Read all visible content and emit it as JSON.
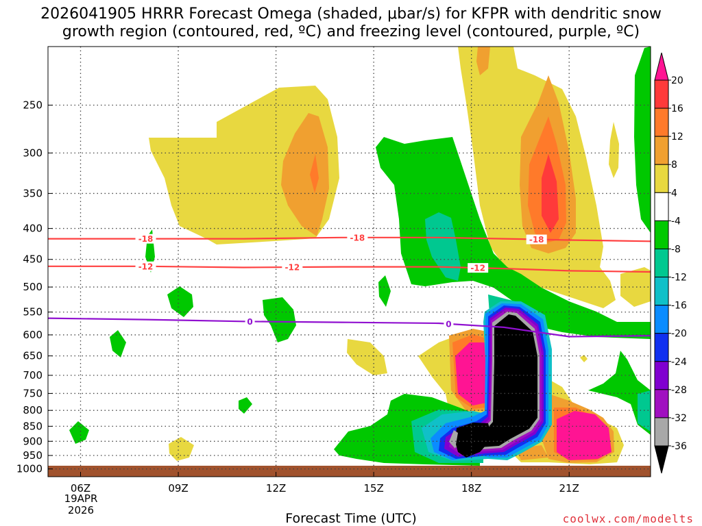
{
  "title_line1": "2026041905 HRRR Forecast Omega (shaded, μbar/s) for KFPR with dendritic snow",
  "title_line2": "growth region (contoured, red, ºC) and freezing level (contoured, purple, ºC)",
  "xlabel": "Forecast Time (UTC)",
  "credit": "coolwx.com/modelts",
  "date_line1": "19APR",
  "date_line2": "2026",
  "chart_data": {
    "type": "heatmap",
    "title": "2026041905 HRRR Forecast Omega (shaded, μbar/s) for KFPR",
    "xlabel": "Forecast Time (UTC)",
    "ylabel": "",
    "x_ticks": [
      "06Z",
      "09Z",
      "12Z",
      "15Z",
      "18Z",
      "21Z"
    ],
    "x_tick_hours": [
      6,
      9,
      12,
      15,
      18,
      21
    ],
    "xlim": [
      5,
      23.5
    ],
    "y_ticks": [
      250,
      300,
      350,
      400,
      450,
      500,
      550,
      600,
      650,
      700,
      750,
      800,
      850,
      900,
      950,
      1000
    ],
    "ylim": [
      1030,
      200
    ],
    "y_scale": "log-pressure",
    "colorbar_levels": [
      20,
      16,
      12,
      8,
      4,
      -4,
      -8,
      -12,
      -16,
      -20,
      -24,
      -28,
      -32,
      -36
    ],
    "colorbar_colors": [
      "#ff1493",
      "#ff3a3a",
      "#ff7a2a",
      "#f0a030",
      "#e8d840",
      "#ffffff",
      "#00c800",
      "#00c890",
      "#10c0c8",
      "#0a8cff",
      "#1030f0",
      "#8000d0",
      "#a010c0",
      "#a8a8a8",
      "#000000"
    ],
    "contours": [
      {
        "label": "-18",
        "color": "#ff4040",
        "p": [
          416,
          416,
          416,
          414,
          414,
          416,
          418,
          420
        ]
      },
      {
        "label": "-12",
        "color": "#ff4040",
        "p": [
          462,
          462,
          464,
          463,
          463,
          466,
          470,
          472
        ]
      },
      {
        "label": "0",
        "color": "#9010d0",
        "p": [
          563,
          566,
          570,
          572,
          574,
          583,
          604,
          602
        ]
      }
    ],
    "contour_hours": [
      5,
      8,
      11,
      14,
      17,
      19,
      21,
      23.5
    ],
    "grid": true
  }
}
